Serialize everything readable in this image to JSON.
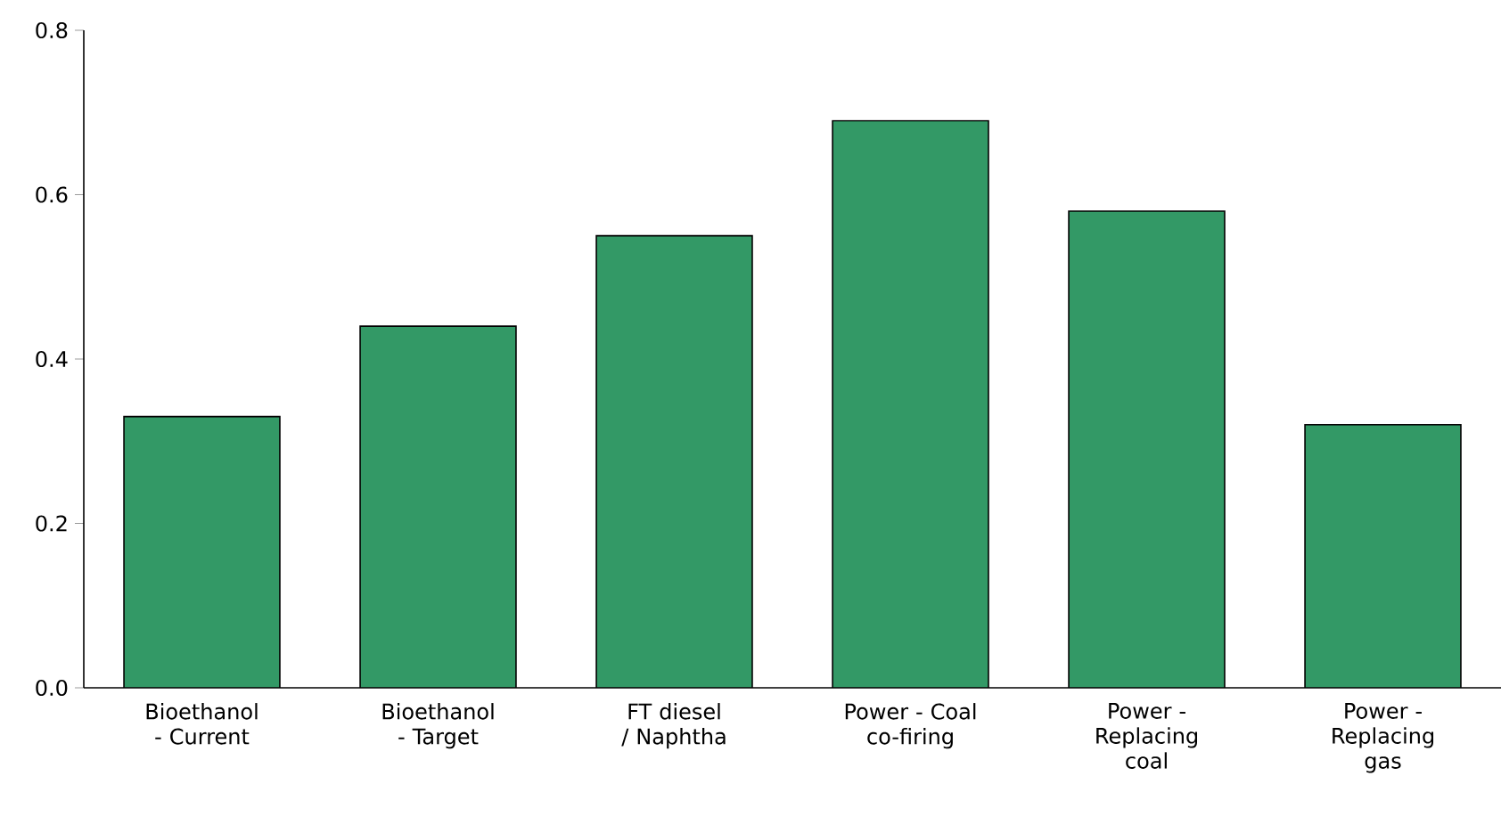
{
  "chart_data": {
    "type": "bar",
    "categories": [
      "Bioethanol - Current",
      "Bioethanol - Target",
      "FT diesel / Naphtha",
      "Power - Coal co-firing",
      "Power - Replacing coal",
      "Power - Replacing gas"
    ],
    "values": [
      0.33,
      0.44,
      0.55,
      0.69,
      0.58,
      0.32
    ],
    "color": "#339966",
    "ylim": [
      0,
      0.8
    ],
    "yticks": [
      {
        "value": 0,
        "label": "0.0"
      },
      0.2,
      0.4,
      0.6,
      0.8
    ],
    "grid": false
  }
}
